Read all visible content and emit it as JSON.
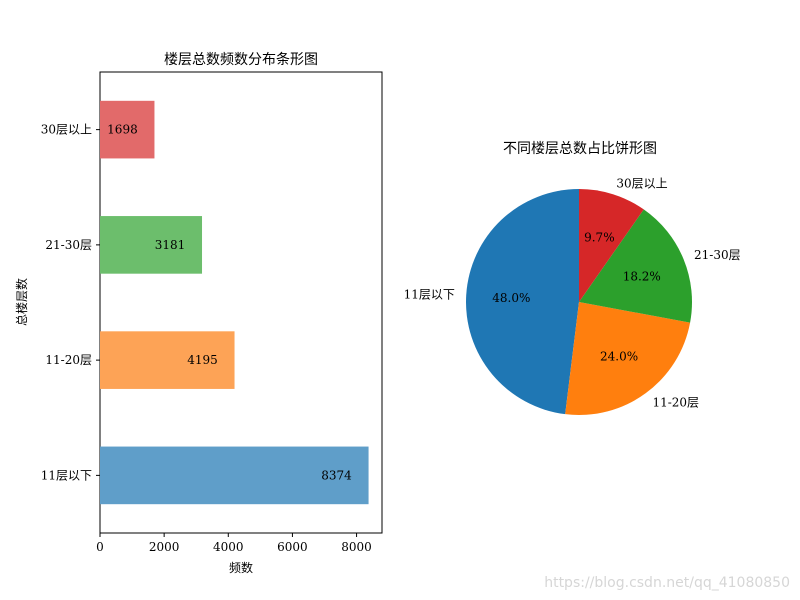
{
  "watermark": "https://blog.csdn.net/qq_41080850",
  "chart_data": [
    {
      "type": "bar",
      "orientation": "horizontal",
      "title": "楼层总数频数分布条形图",
      "xlabel": "频数",
      "ylabel": "总楼层数",
      "categories": [
        "11层以下",
        "11-20层",
        "21-30层",
        "30层以上"
      ],
      "values": [
        8374,
        4195,
        3181,
        1698
      ],
      "data_labels": [
        "8374",
        "4195",
        "3181",
        "1698"
      ],
      "colors": [
        "#5f9ec9",
        "#fda356",
        "#6cbe6c",
        "#e26a6a"
      ],
      "xlim": [
        0,
        8793
      ],
      "xticks": [
        0,
        2000,
        4000,
        6000,
        8000
      ],
      "xtick_labels": [
        "0",
        "2000",
        "4000",
        "6000",
        "8000"
      ],
      "grid": false
    },
    {
      "type": "pie",
      "title": "不同楼层总数占比饼形图",
      "labels": [
        "11层以下",
        "11-20层",
        "21-30层",
        "30层以上"
      ],
      "values": [
        48.0,
        24.0,
        18.2,
        9.7
      ],
      "pct_labels": [
        "48.0%",
        "24.0%",
        "18.2%",
        "9.7%"
      ],
      "colors": [
        "#1f77b4",
        "#ff7f0e",
        "#2ca02c",
        "#d62728"
      ],
      "start_angle": 90,
      "counterclock": true
    }
  ]
}
